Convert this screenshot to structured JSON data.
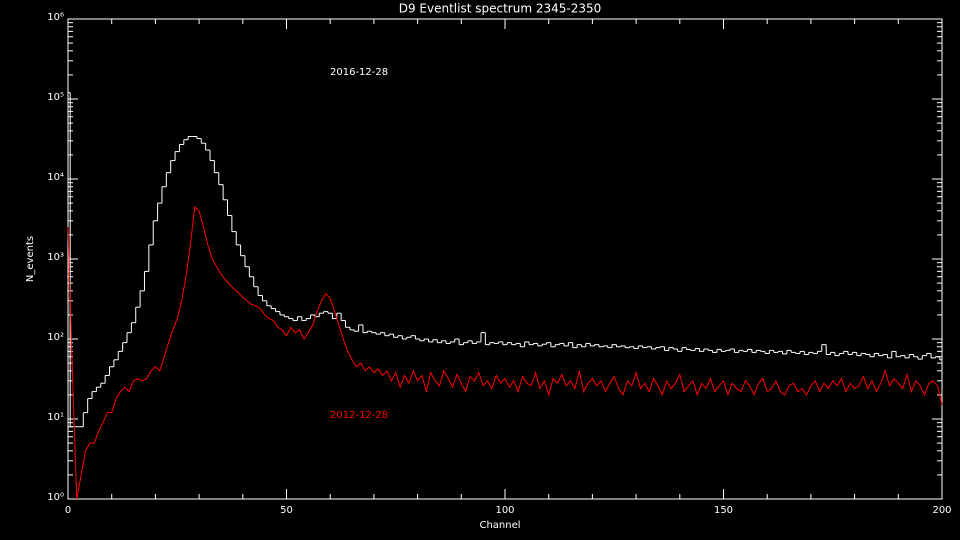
{
  "chart_data": {
    "type": "line",
    "title": "D9 Eventlist spectrum 2345-2350",
    "x_label": "Channel",
    "y_label": "N_events",
    "log_y": true,
    "xlim": [
      0,
      200
    ],
    "xticks": [
      0,
      50,
      100,
      150,
      200
    ],
    "ylim": [
      1,
      1000000
    ],
    "yticks": [
      {
        "value": 1,
        "label": "10⁰"
      },
      {
        "value": 10,
        "label": "10¹"
      },
      {
        "value": 100,
        "label": "10²"
      },
      {
        "value": 1000,
        "label": "10³"
      },
      {
        "value": 10000,
        "label": "10⁴"
      },
      {
        "value": 100000,
        "label": "10⁵"
      },
      {
        "value": 1000000,
        "label": "10⁶"
      }
    ],
    "x": [
      0,
      1,
      2,
      3,
      4,
      5,
      6,
      7,
      8,
      9,
      10,
      11,
      12,
      13,
      14,
      15,
      16,
      17,
      18,
      19,
      20,
      21,
      22,
      23,
      24,
      25,
      26,
      27,
      28,
      29,
      30,
      31,
      32,
      33,
      34,
      35,
      36,
      37,
      38,
      39,
      40,
      41,
      42,
      43,
      44,
      45,
      46,
      47,
      48,
      49,
      50,
      51,
      52,
      53,
      54,
      55,
      56,
      57,
      58,
      59,
      60,
      61,
      62,
      63,
      64,
      65,
      66,
      67,
      68,
      69,
      70,
      71,
      72,
      73,
      74,
      75,
      76,
      77,
      78,
      79,
      80,
      81,
      82,
      83,
      84,
      85,
      86,
      87,
      88,
      89,
      90,
      91,
      92,
      93,
      94,
      95,
      96,
      97,
      98,
      99,
      100,
      101,
      102,
      103,
      104,
      105,
      106,
      107,
      108,
      109,
      110,
      111,
      112,
      113,
      114,
      115,
      116,
      117,
      118,
      119,
      120,
      121,
      122,
      123,
      124,
      125,
      126,
      127,
      128,
      129,
      130,
      131,
      132,
      133,
      134,
      135,
      136,
      137,
      138,
      139,
      140,
      141,
      142,
      143,
      144,
      145,
      146,
      147,
      148,
      149,
      150,
      151,
      152,
      153,
      154,
      155,
      156,
      157,
      158,
      159,
      160,
      161,
      162,
      163,
      164,
      165,
      166,
      167,
      168,
      169,
      170,
      171,
      172,
      173,
      174,
      175,
      176,
      177,
      178,
      179,
      180,
      181,
      182,
      183,
      184,
      185,
      186,
      187,
      188,
      189,
      190,
      191,
      192,
      193,
      194,
      195,
      196,
      197,
      198,
      199,
      200
    ],
    "series": [
      {
        "name": "2016-12-28",
        "color": "#ffffff",
        "style": "histogram",
        "values": [
          120000,
          8,
          8,
          8,
          12,
          18,
          22,
          25,
          28,
          35,
          45,
          55,
          70,
          90,
          120,
          160,
          250,
          400,
          700,
          1500,
          3000,
          5000,
          8000,
          12000,
          17000,
          22000,
          27000,
          31000,
          34000,
          34000,
          32000,
          28000,
          23000,
          17000,
          12000,
          8500,
          5500,
          3500,
          2200,
          1500,
          1100,
          800,
          600,
          450,
          350,
          300,
          260,
          240,
          220,
          200,
          190,
          180,
          170,
          190,
          170,
          180,
          200,
          190,
          210,
          220,
          210,
          180,
          210,
          170,
          140,
          130,
          125,
          150,
          120,
          125,
          120,
          115,
          120,
          110,
          115,
          105,
          110,
          100,
          105,
          110,
          100,
          95,
          100,
          92,
          98,
          90,
          95,
          88,
          92,
          100,
          85,
          90,
          95,
          88,
          92,
          120,
          85,
          90,
          88,
          92,
          85,
          90,
          85,
          88,
          80,
          92,
          85,
          88,
          82,
          86,
          90,
          80,
          85,
          88,
          82,
          90,
          78,
          85,
          80,
          88,
          82,
          85,
          80,
          82,
          78,
          85,
          80,
          82,
          78,
          80,
          76,
          82,
          78,
          80,
          75,
          78,
          80,
          72,
          78,
          75,
          70,
          78,
          74,
          72,
          76,
          70,
          75,
          72,
          68,
          74,
          70,
          72,
          75,
          68,
          72,
          70,
          74,
          68,
          72,
          70,
          66,
          72,
          68,
          70,
          65,
          72,
          68,
          66,
          70,
          64,
          68,
          66,
          70,
          85,
          64,
          68,
          62,
          66,
          70,
          64,
          68,
          62,
          66,
          64,
          60,
          66,
          62,
          64,
          58,
          70,
          60,
          62,
          58,
          64,
          60,
          56,
          62,
          66,
          58,
          60,
          55
        ]
      },
      {
        "name": "2012-12-28",
        "color": "#ff0000",
        "style": "line",
        "values": [
          2500,
          40,
          1,
          2,
          4,
          5,
          5,
          7,
          9,
          12,
          12,
          18,
          22,
          25,
          22,
          30,
          32,
          30,
          32,
          40,
          45,
          40,
          60,
          90,
          130,
          180,
          300,
          600,
          1500,
          4500,
          4000,
          2500,
          1500,
          1000,
          800,
          650,
          550,
          480,
          420,
          380,
          330,
          300,
          270,
          260,
          240,
          200,
          180,
          170,
          140,
          130,
          110,
          140,
          120,
          130,
          100,
          120,
          150,
          220,
          300,
          370,
          320,
          220,
          150,
          100,
          70,
          55,
          45,
          50,
          40,
          45,
          38,
          42,
          35,
          40,
          30,
          38,
          25,
          35,
          28,
          40,
          30,
          35,
          22,
          38,
          30,
          26,
          40,
          32,
          25,
          36,
          28,
          22,
          34,
          30,
          38,
          26,
          30,
          24,
          35,
          28,
          32,
          25,
          30,
          22,
          34,
          28,
          26,
          38,
          24,
          30,
          20,
          32,
          28,
          36,
          26,
          30,
          24,
          40,
          22,
          28,
          32,
          26,
          30,
          22,
          28,
          34,
          24,
          20,
          30,
          26,
          38,
          24,
          28,
          22,
          32,
          26,
          20,
          30,
          24,
          28,
          36,
          22,
          26,
          30,
          20,
          28,
          24,
          32,
          22,
          26,
          30,
          20,
          28,
          24,
          22,
          30,
          26,
          20,
          28,
          32,
          22,
          24,
          30,
          22,
          20,
          26,
          28,
          22,
          24,
          20,
          26,
          30,
          22,
          28,
          24,
          30,
          26,
          32,
          22,
          28,
          24,
          26,
          34,
          24,
          30,
          22,
          28,
          40,
          26,
          32,
          28,
          24,
          36,
          22,
          30,
          26,
          20,
          28,
          30,
          26,
          15
        ]
      }
    ]
  }
}
